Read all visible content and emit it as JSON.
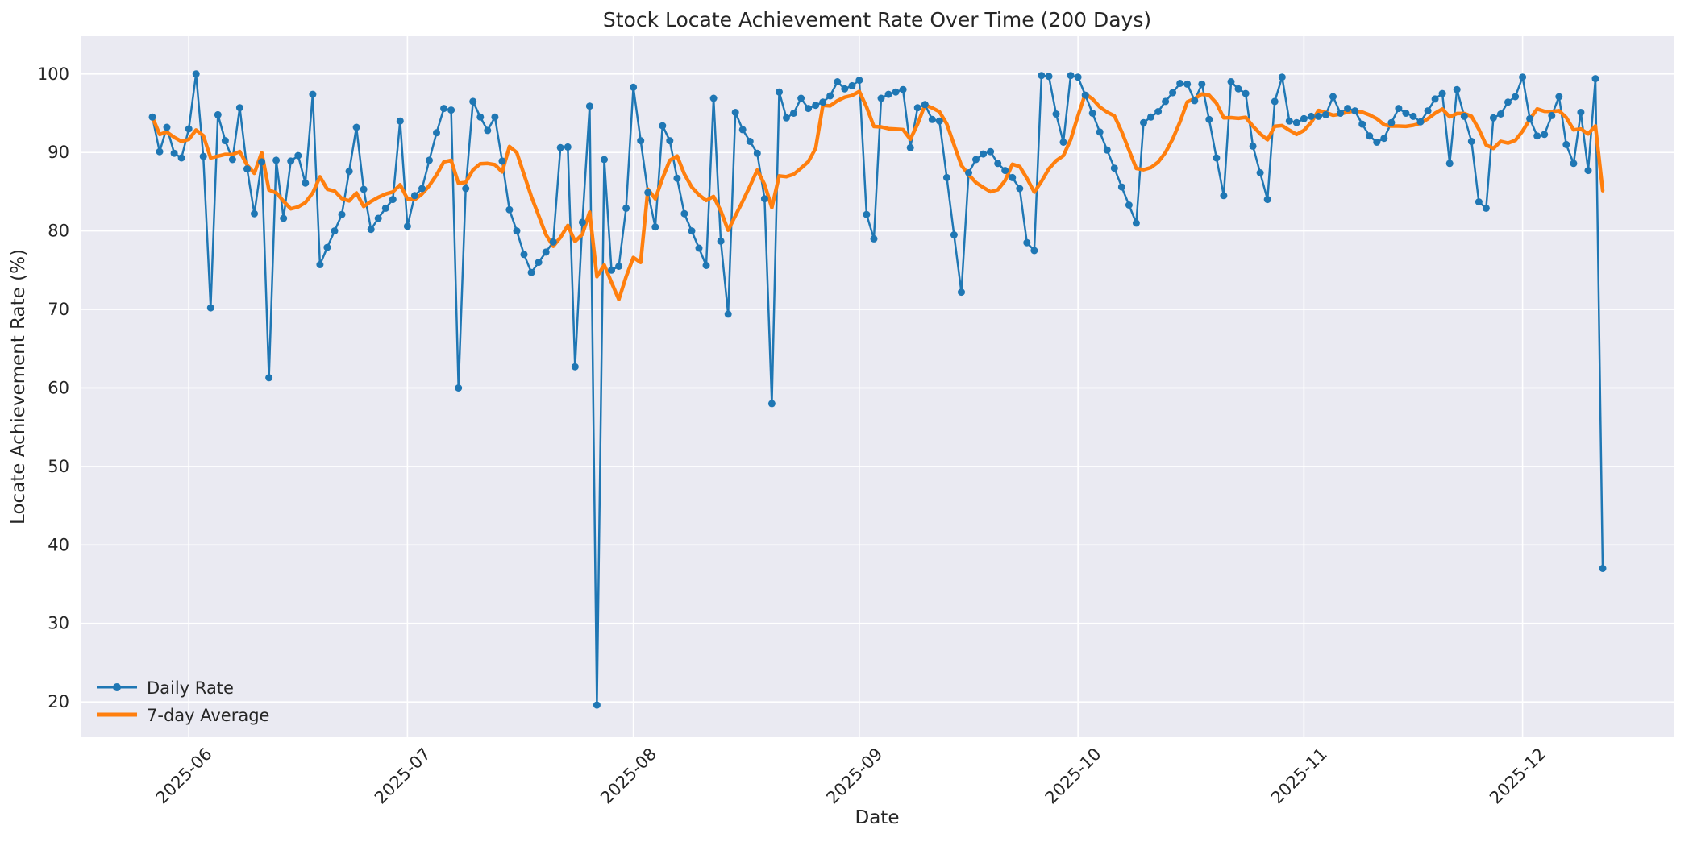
{
  "chart_data": {
    "type": "line",
    "title": "Stock Locate Achievement Rate Over Time (200 Days)",
    "xlabel": "Date",
    "ylabel": "Locate Achievement Rate (%)",
    "grid": true,
    "plot_bg_color": "#EAEAF2",
    "grid_color": "#FFFFFF",
    "text_color": "#262626",
    "legend_position": "lower left",
    "start_date": "2025-05-27",
    "n_days": 200,
    "x_tick_labels": [
      "2025-06",
      "2025-07",
      "2025-08",
      "2025-09",
      "2025-10",
      "2025-11",
      "2025-12"
    ],
    "x_tick_days": [
      5,
      35,
      66,
      97,
      127,
      158,
      188
    ],
    "xlim_days": [
      -9.84,
      208.84
    ],
    "y_ticks": [
      20,
      30,
      40,
      50,
      60,
      70,
      80,
      90,
      100
    ],
    "ylim": [
      15.5,
      104.8
    ],
    "series": [
      {
        "name": "Daily Rate",
        "color": "#1F77B4",
        "linewidth": 2.5,
        "marker": "circle",
        "marker_radius": 4.5,
        "values": [
          94.5,
          90.1,
          93.2,
          89.9,
          89.3,
          93.0,
          100.0,
          89.5,
          70.2,
          94.8,
          91.5,
          89.1,
          95.7,
          87.9,
          82.2,
          88.8,
          61.3,
          89.0,
          81.6,
          88.9,
          89.6,
          86.1,
          97.4,
          75.7,
          77.9,
          80.0,
          82.1,
          87.6,
          93.2,
          85.3,
          80.2,
          81.6,
          82.9,
          84.0,
          94.0,
          80.6,
          84.5,
          85.4,
          89.0,
          92.5,
          95.6,
          95.4,
          60.0,
          85.4,
          96.5,
          94.5,
          92.8,
          94.5,
          88.9,
          82.7,
          80.0,
          77.0,
          74.7,
          76.0,
          77.3,
          78.6,
          90.6,
          90.7,
          62.7,
          81.1,
          95.9,
          19.6,
          89.1,
          75.0,
          75.5,
          82.9,
          98.3,
          91.5,
          84.9,
          80.5,
          93.4,
          91.5,
          86.7,
          82.2,
          80.0,
          77.8,
          75.6,
          96.9,
          78.7,
          69.4,
          95.1,
          92.9,
          91.4,
          89.9,
          84.1,
          58.0,
          97.7,
          94.4,
          95.0,
          96.9,
          95.6,
          96.0,
          96.4,
          97.2,
          99.0,
          98.1,
          98.5,
          99.2,
          82.1,
          79.0,
          96.9,
          97.4,
          97.7,
          98.0,
          90.6,
          95.7,
          96.1,
          94.2,
          94.0,
          86.8,
          79.5,
          72.2,
          87.4,
          89.1,
          89.8,
          90.1,
          88.6,
          87.7,
          86.8,
          85.4,
          78.5,
          77.5,
          99.8,
          99.7,
          94.9,
          91.3,
          99.8,
          99.6,
          97.3,
          95.0,
          92.6,
          90.3,
          88.0,
          85.6,
          83.3,
          81.0,
          93.8,
          94.5,
          95.2,
          96.5,
          97.6,
          98.8,
          98.7,
          96.6,
          98.7,
          94.2,
          89.3,
          84.5,
          99.0,
          98.1,
          97.5,
          90.8,
          87.4,
          84.0,
          96.5,
          99.6,
          94.0,
          93.8,
          94.3,
          94.6,
          94.6,
          94.8,
          97.1,
          95.0,
          95.6,
          95.3,
          93.6,
          92.1,
          91.3,
          91.8,
          93.8,
          95.6,
          95.0,
          94.6,
          93.9,
          95.3,
          96.8,
          97.5,
          88.6,
          98.0,
          94.6,
          91.4,
          83.7,
          82.9,
          94.4,
          94.9,
          96.4,
          97.1,
          99.6,
          94.3,
          92.1,
          92.3,
          94.7,
          97.1,
          91.0,
          88.6,
          95.1,
          87.7,
          99.4,
          37.0
        ]
      },
      {
        "name": "7-day Average",
        "color": "#FF7F0E",
        "linewidth": 4.5,
        "marker": "none",
        "derived": "rolling_mean_window_7_min_periods_1"
      }
    ]
  }
}
